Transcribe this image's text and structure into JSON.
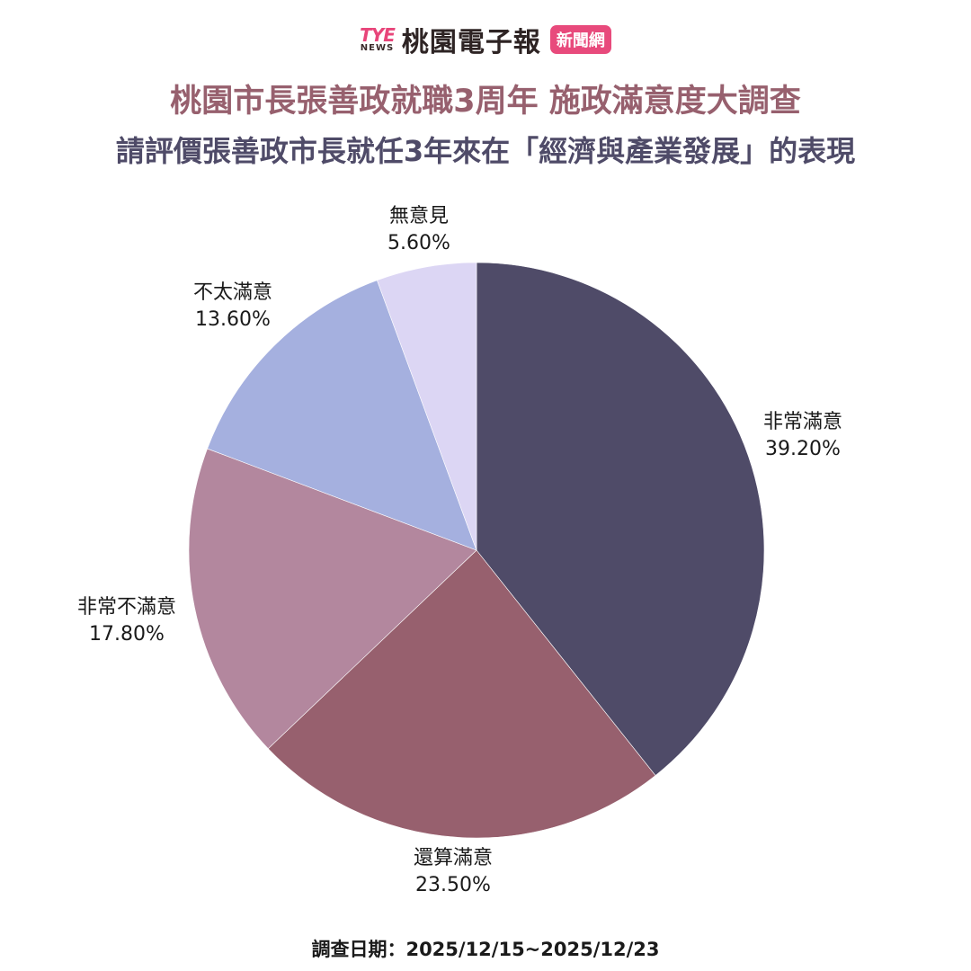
{
  "logo": {
    "mark_top": "TYE",
    "mark_bottom": "NEWS",
    "name": "桃園電子報",
    "badge": "新聞網"
  },
  "title": "桃園市長張善政就職3周年  施政滿意度大調查",
  "subtitle": "請評價張善政市長就任3年來在「經濟與產業發展」的表現",
  "footer": "調查日期：2025/12/15~2025/12/23",
  "chart_data": {
    "type": "pie",
    "title": "桃園市長張善政就職3周年  施政滿意度大調查",
    "subtitle": "請評價張善政市長就任3年來在「經濟與產業發展」的表現",
    "categories": [
      "非常滿意",
      "還算滿意",
      "非常不滿意",
      "不太滿意",
      "無意見"
    ],
    "values": [
      39.2,
      23.5,
      17.8,
      13.6,
      5.6
    ],
    "value_labels": [
      "39.20%",
      "23.50%",
      "17.80%",
      "13.60%",
      "5.60%"
    ],
    "colors": [
      "#4f4b68",
      "#97606e",
      "#b3879e",
      "#a5b0df",
      "#dcd6f4"
    ],
    "start_angle": "12 o'clock, clockwise",
    "legend": "none (direct labels)"
  },
  "labels": [
    {
      "name": "非常滿意",
      "value": "39.20%"
    },
    {
      "name": "還算滿意",
      "value": "23.50%"
    },
    {
      "name": "非常不滿意",
      "value": "17.80%"
    },
    {
      "name": "不太滿意",
      "value": "13.60%"
    },
    {
      "name": "無意見",
      "value": "5.60%"
    }
  ]
}
